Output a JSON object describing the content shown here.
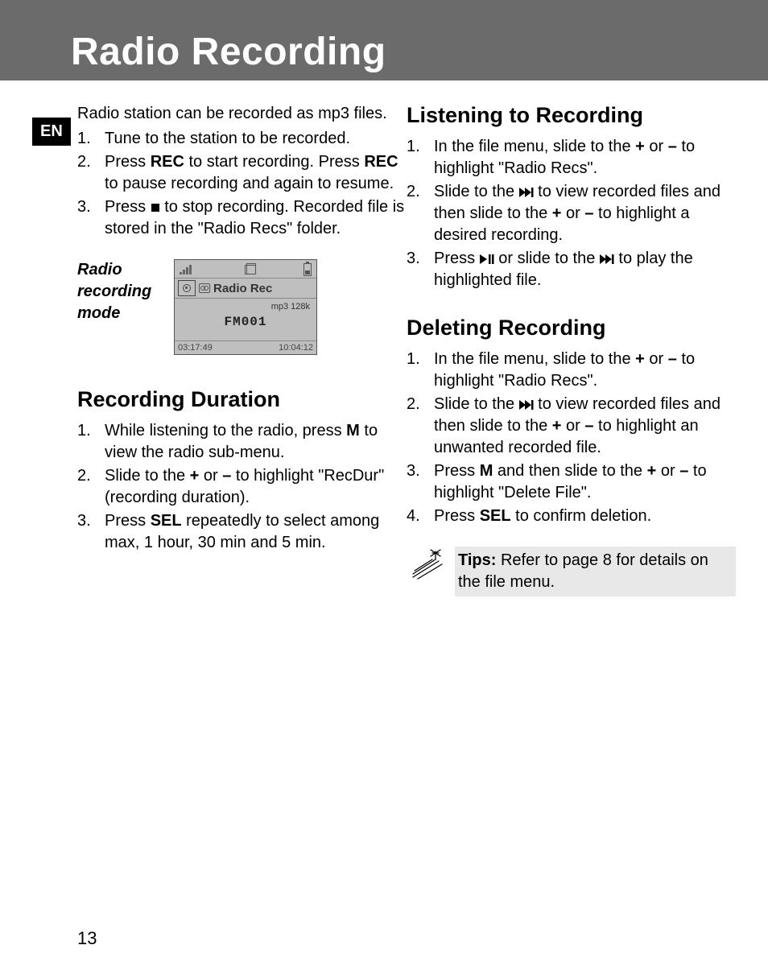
{
  "page": {
    "title": "Radio Recording",
    "lang_badge": "EN",
    "page_number": "13"
  },
  "left": {
    "intro": "Radio station can be recorded as mp3 files.",
    "recording_steps": [
      {
        "num": "1.",
        "parts": [
          "Tune to the station to be recorded."
        ]
      },
      {
        "num": "2.",
        "parts": [
          "Press ",
          {
            "b": "REC"
          },
          " to start recording. Press ",
          {
            "b": "REC"
          },
          " to pause recording and again to resume."
        ]
      },
      {
        "num": "3.",
        "parts": [
          "Press  ",
          {
            "icon": "stop"
          },
          "  to stop recording. Recorded file is stored in the \"Radio Recs\" folder."
        ]
      }
    ],
    "mode_label": "Radio recording mode",
    "lcd": {
      "row2_text": "Radio Rec",
      "line3": "mp3  128k",
      "line4": "FM001",
      "bottom_left": "03:17:49",
      "bottom_right": "10:04:12"
    },
    "duration_heading": "Recording Duration",
    "duration_steps": [
      {
        "num": "1.",
        "parts": [
          "While listening to the radio, press ",
          {
            "b": "M"
          },
          " to view the radio sub-menu."
        ]
      },
      {
        "num": "2.",
        "parts": [
          "Slide to the ",
          {
            "b": "+"
          },
          " or ",
          {
            "b": "–"
          },
          " to highlight \"RecDur\" (recording duration)."
        ]
      },
      {
        "num": "3.",
        "parts": [
          "Press ",
          {
            "b": "SEL"
          },
          " repeatedly to select among max, 1 hour, 30 min and 5 min."
        ]
      }
    ]
  },
  "right": {
    "listening_heading": "Listening to Recording",
    "listening_steps": [
      {
        "num": "1.",
        "parts": [
          "In the file menu, slide to the ",
          {
            "b": "+"
          },
          " or ",
          {
            "b": "–"
          },
          " to highlight \"Radio Recs\"."
        ]
      },
      {
        "num": "2.",
        "parts": [
          "Slide to the  ",
          {
            "icon": "next"
          },
          "  to view recorded files and then slide to the ",
          {
            "b": "+"
          },
          " or ",
          {
            "b": "–"
          },
          " to highlight a desired recording."
        ]
      },
      {
        "num": "3.",
        "parts": [
          "Press  ",
          {
            "icon": "playpause"
          },
          " or slide to the  ",
          {
            "icon": "next"
          },
          "  to play the highlighted file."
        ]
      }
    ],
    "deleting_heading": "Deleting Recording",
    "deleting_steps": [
      {
        "num": "1.",
        "parts": [
          "In the file menu, slide to the ",
          {
            "b": "+"
          },
          " or ",
          {
            "b": "–"
          },
          " to highlight \"Radio Recs\"."
        ]
      },
      {
        "num": "2.",
        "parts": [
          "Slide to the  ",
          {
            "icon": "next"
          },
          "   to view recorded files and then slide to the ",
          {
            "b": "+"
          },
          " or ",
          {
            "b": "–"
          },
          " to highlight an unwanted recorded file."
        ]
      },
      {
        "num": "3.",
        "parts": [
          "Press ",
          {
            "b": "M"
          },
          " and then slide to the ",
          {
            "b": "+"
          },
          " or ",
          {
            "b": "–"
          },
          " to highlight \"Delete File\"."
        ]
      },
      {
        "num": "4.",
        "parts": [
          "Press ",
          {
            "b": "SEL"
          },
          " to confirm deletion."
        ]
      }
    ],
    "tips": {
      "label": "Tips:",
      "text": " Refer to page 8 for details on the file menu."
    }
  },
  "colors": {
    "header_bg": "#6b6b6b",
    "header_text": "#ffffff",
    "body_text": "#000000",
    "lcd_bg": "#bfbfbf",
    "tips_bg": "#e8e8e8"
  }
}
